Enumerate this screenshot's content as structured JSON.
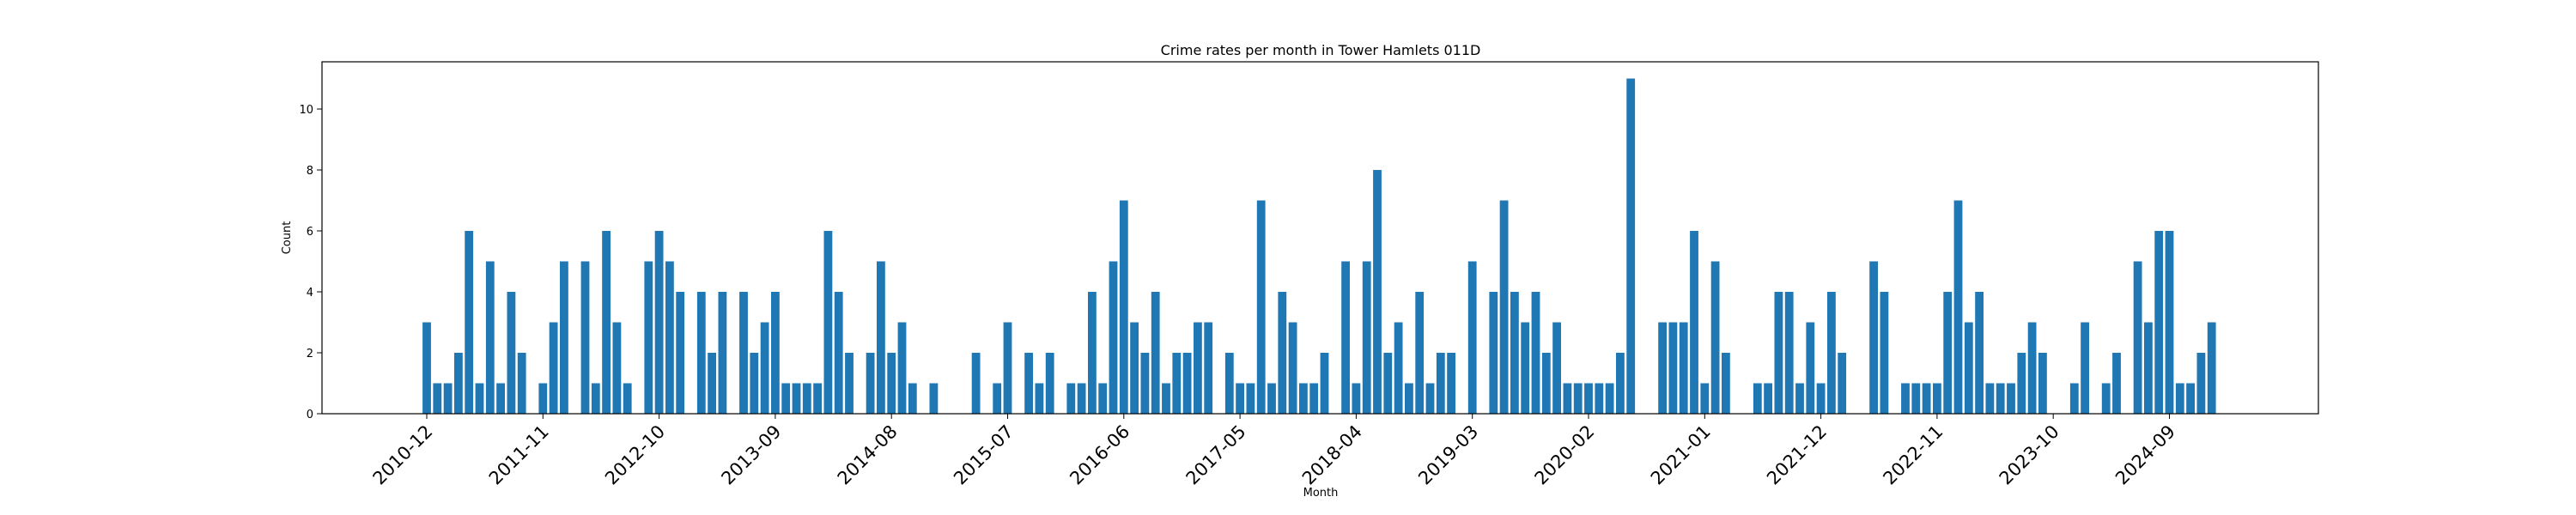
{
  "chart_data": {
    "type": "bar",
    "title": "Crime rates per month in Tower Hamlets 011D",
    "xlabel": "Month",
    "ylabel": "Count",
    "ylim": [
      0,
      11.55
    ],
    "yticks": [
      0,
      2,
      4,
      6,
      8,
      10
    ],
    "start_month": "2010-12",
    "xtick_labels": [
      "2010-12",
      "2011-11",
      "2012-10",
      "2013-09",
      "2014-08",
      "2015-07",
      "2016-06",
      "2017-05",
      "2018-04",
      "2019-03",
      "2020-02",
      "2021-01",
      "2021-12",
      "2022-11",
      "2023-10",
      "2024-09"
    ],
    "xtick_step": 11,
    "bar_color": "#1f77b4",
    "grid": false,
    "values": [
      3,
      1,
      1,
      2,
      6,
      1,
      5,
      1,
      4,
      2,
      0,
      1,
      3,
      5,
      0,
      5,
      1,
      6,
      3,
      1,
      0,
      5,
      6,
      5,
      4,
      0,
      4,
      2,
      4,
      0,
      4,
      2,
      3,
      4,
      1,
      1,
      1,
      1,
      6,
      4,
      2,
      0,
      2,
      5,
      2,
      3,
      1,
      0,
      1,
      0,
      0,
      0,
      2,
      0,
      1,
      3,
      0,
      2,
      1,
      2,
      0,
      1,
      1,
      4,
      1,
      5,
      7,
      3,
      2,
      4,
      1,
      2,
      2,
      3,
      3,
      0,
      2,
      1,
      1,
      7,
      1,
      4,
      3,
      1,
      1,
      2,
      0,
      5,
      1,
      5,
      8,
      2,
      3,
      1,
      4,
      1,
      2,
      2,
      0,
      5,
      0,
      4,
      7,
      4,
      3,
      4,
      2,
      3,
      1,
      1,
      1,
      1,
      1,
      2,
      11,
      0,
      0,
      3,
      3,
      3,
      6,
      1,
      5,
      2,
      0,
      0,
      1,
      1,
      4,
      4,
      1,
      3,
      1,
      4,
      2,
      0,
      0,
      5,
      4,
      0,
      1,
      1,
      1,
      1,
      4,
      7,
      3,
      4,
      1,
      1,
      1,
      2,
      3,
      2,
      0,
      0,
      1,
      3,
      0,
      1,
      2,
      0,
      5,
      3,
      6,
      6,
      1,
      1,
      2,
      3
    ]
  }
}
